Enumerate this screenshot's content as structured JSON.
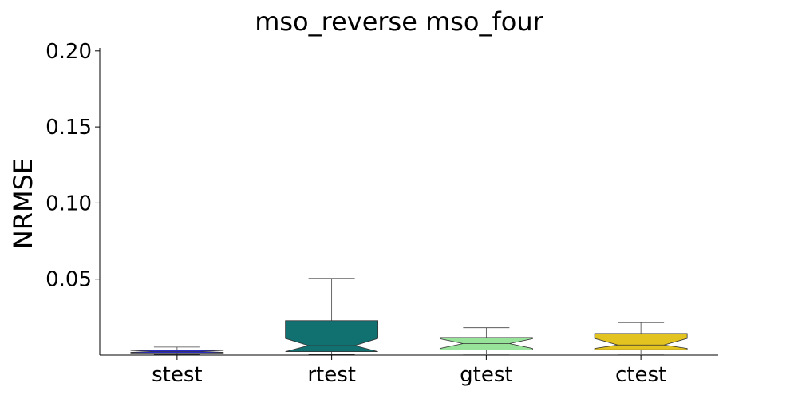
{
  "chart_data": {
    "type": "boxplot",
    "title": "mso_reverse mso_four",
    "xlabel": "",
    "ylabel": "NRMSE",
    "ylim": [
      0.0,
      0.202
    ],
    "yticks": [
      0.05,
      0.1,
      0.15,
      0.2
    ],
    "ytick_labels": [
      "0.05",
      "0.10",
      "0.15",
      "0.20"
    ],
    "grid": false,
    "notched": true,
    "categories": [
      "stest",
      "rtest",
      "gtest",
      "ctest"
    ],
    "boxes": [
      {
        "name": "stest",
        "color": "#2b2bd6",
        "whislo": 0.0005,
        "q1": 0.0014,
        "med": 0.0025,
        "q3": 0.0034,
        "whishi": 0.0053,
        "notch_lo": 0.0018,
        "notch_hi": 0.0031
      },
      {
        "name": "rtest",
        "color": "#117170",
        "whislo": 0.0005,
        "q1": 0.0023,
        "med": 0.0063,
        "q3": 0.0227,
        "whishi": 0.0505,
        "notch_lo": 0.0023,
        "notch_hi": 0.011
      },
      {
        "name": "gtest",
        "color": "#98e39a",
        "whislo": 0.0007,
        "q1": 0.0034,
        "med": 0.0076,
        "q3": 0.0116,
        "whishi": 0.018,
        "notch_lo": 0.0044,
        "notch_hi": 0.0108
      },
      {
        "name": "ctest",
        "color": "#e2c31f",
        "whislo": 0.0007,
        "q1": 0.0035,
        "med": 0.0067,
        "q3": 0.0142,
        "whishi": 0.0214,
        "notch_lo": 0.0044,
        "notch_hi": 0.011
      }
    ]
  }
}
